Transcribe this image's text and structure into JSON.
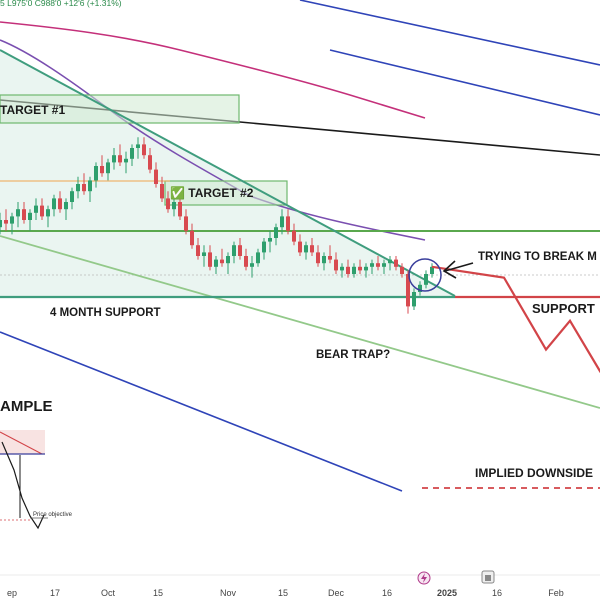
{
  "header": {
    "ohlc_text": "5  L975'0  C988'0  +12'6 (+1.31%)"
  },
  "annotations": {
    "target1": "TARGET #1",
    "target2": "✅ TARGET #2",
    "four_month_support": "4 MONTH SUPPORT",
    "trying_to_break": "TRYING TO BREAK M",
    "support": "SUPPORT",
    "bear_trap": "BEAR TRAP?",
    "implied_downside": "IMPLIED DOWNSIDE",
    "example": "AMPLE",
    "price_objective": "Price objective"
  },
  "x_axis": {
    "ticks": [
      "ep",
      "17",
      "Oct",
      "15",
      "Nov",
      "15",
      "Dec",
      "16",
      "2025",
      "16",
      "Feb"
    ]
  },
  "icons": [
    "lightning-icon",
    "calendar-icon"
  ],
  "colors": {
    "up_candle": "#2e9f6d",
    "down_candle": "#d84a50",
    "wedge_fill": "#e6f3ee",
    "wedge_line": "#3f9d7e",
    "ma_magenta": "#c4307a",
    "ma_purple": "#7a4fb0",
    "channel_blue": "#2f44b8",
    "support_red": "#d24448",
    "target_box": "#cfead1",
    "target_border": "#6fb86f"
  },
  "chart_data": {
    "type": "candlestick",
    "candles": [
      {
        "o": 48,
        "h": 52,
        "l": 46,
        "c": 50
      },
      {
        "o": 50,
        "h": 53,
        "l": 47,
        "c": 49
      },
      {
        "o": 49,
        "h": 52,
        "l": 46,
        "c": 51
      },
      {
        "o": 51,
        "h": 55,
        "l": 48,
        "c": 53
      },
      {
        "o": 53,
        "h": 55,
        "l": 49,
        "c": 50
      },
      {
        "o": 50,
        "h": 53,
        "l": 47,
        "c": 52
      },
      {
        "o": 52,
        "h": 56,
        "l": 50,
        "c": 54
      },
      {
        "o": 54,
        "h": 56,
        "l": 50,
        "c": 51
      },
      {
        "o": 51,
        "h": 54,
        "l": 48,
        "c": 53
      },
      {
        "o": 53,
        "h": 57,
        "l": 51,
        "c": 56
      },
      {
        "o": 56,
        "h": 58,
        "l": 52,
        "c": 53
      },
      {
        "o": 53,
        "h": 56,
        "l": 50,
        "c": 55
      },
      {
        "o": 55,
        "h": 59,
        "l": 53,
        "c": 58
      },
      {
        "o": 58,
        "h": 62,
        "l": 56,
        "c": 60
      },
      {
        "o": 60,
        "h": 63,
        "l": 57,
        "c": 58
      },
      {
        "o": 58,
        "h": 62,
        "l": 55,
        "c": 61
      },
      {
        "o": 61,
        "h": 66,
        "l": 59,
        "c": 65
      },
      {
        "o": 65,
        "h": 68,
        "l": 62,
        "c": 63
      },
      {
        "o": 63,
        "h": 67,
        "l": 61,
        "c": 66
      },
      {
        "o": 66,
        "h": 70,
        "l": 64,
        "c": 68
      },
      {
        "o": 68,
        "h": 71,
        "l": 65,
        "c": 66
      },
      {
        "o": 66,
        "h": 69,
        "l": 63,
        "c": 67
      },
      {
        "o": 67,
        "h": 71,
        "l": 65,
        "c": 70
      },
      {
        "o": 70,
        "h": 73,
        "l": 67,
        "c": 71
      },
      {
        "o": 71,
        "h": 73,
        "l": 67,
        "c": 68
      },
      {
        "o": 68,
        "h": 70,
        "l": 63,
        "c": 64
      },
      {
        "o": 64,
        "h": 66,
        "l": 59,
        "c": 60
      },
      {
        "o": 60,
        "h": 62,
        "l": 55,
        "c": 56
      },
      {
        "o": 56,
        "h": 58,
        "l": 52,
        "c": 53
      },
      {
        "o": 53,
        "h": 56,
        "l": 51,
        "c": 55
      },
      {
        "o": 55,
        "h": 57,
        "l": 50,
        "c": 51
      },
      {
        "o": 51,
        "h": 53,
        "l": 46,
        "c": 47
      },
      {
        "o": 47,
        "h": 49,
        "l": 42,
        "c": 43
      },
      {
        "o": 43,
        "h": 45,
        "l": 39,
        "c": 40
      },
      {
        "o": 40,
        "h": 43,
        "l": 37,
        "c": 41
      },
      {
        "o": 41,
        "h": 43,
        "l": 36,
        "c": 37
      },
      {
        "o": 37,
        "h": 40,
        "l": 35,
        "c": 39
      },
      {
        "o": 39,
        "h": 42,
        "l": 37,
        "c": 38
      },
      {
        "o": 38,
        "h": 41,
        "l": 35,
        "c": 40
      },
      {
        "o": 40,
        "h": 44,
        "l": 38,
        "c": 43
      },
      {
        "o": 43,
        "h": 45,
        "l": 39,
        "c": 40
      },
      {
        "o": 40,
        "h": 42,
        "l": 36,
        "c": 37
      },
      {
        "o": 37,
        "h": 40,
        "l": 34,
        "c": 38
      },
      {
        "o": 38,
        "h": 42,
        "l": 37,
        "c": 41
      },
      {
        "o": 41,
        "h": 45,
        "l": 39,
        "c": 44
      },
      {
        "o": 44,
        "h": 47,
        "l": 41,
        "c": 45
      },
      {
        "o": 45,
        "h": 49,
        "l": 43,
        "c": 48
      },
      {
        "o": 48,
        "h": 53,
        "l": 46,
        "c": 51
      },
      {
        "o": 51,
        "h": 53,
        "l": 46,
        "c": 47
      },
      {
        "o": 47,
        "h": 49,
        "l": 43,
        "c": 44
      },
      {
        "o": 44,
        "h": 46,
        "l": 40,
        "c": 41
      },
      {
        "o": 41,
        "h": 44,
        "l": 39,
        "c": 43
      },
      {
        "o": 43,
        "h": 45,
        "l": 40,
        "c": 41
      },
      {
        "o": 41,
        "h": 43,
        "l": 37,
        "c": 38
      },
      {
        "o": 38,
        "h": 41,
        "l": 36,
        "c": 40
      },
      {
        "o": 40,
        "h": 43,
        "l": 38,
        "c": 39
      },
      {
        "o": 39,
        "h": 41,
        "l": 35,
        "c": 36
      },
      {
        "o": 36,
        "h": 38,
        "l": 34,
        "c": 37
      },
      {
        "o": 37,
        "h": 39,
        "l": 34,
        "c": 35
      },
      {
        "o": 35,
        "h": 38,
        "l": 34,
        "c": 37
      },
      {
        "o": 37,
        "h": 39,
        "l": 35,
        "c": 36
      },
      {
        "o": 36,
        "h": 38,
        "l": 34,
        "c": 37
      },
      {
        "o": 37,
        "h": 39,
        "l": 35,
        "c": 38
      },
      {
        "o": 38,
        "h": 40,
        "l": 36,
        "c": 37
      },
      {
        "o": 37,
        "h": 39,
        "l": 35,
        "c": 38
      },
      {
        "o": 38,
        "h": 40,
        "l": 36,
        "c": 39
      },
      {
        "o": 39,
        "h": 40,
        "l": 36,
        "c": 37
      },
      {
        "o": 37,
        "h": 38,
        "l": 34,
        "c": 35
      },
      {
        "o": 35,
        "h": 36,
        "l": 24,
        "c": 26
      },
      {
        "o": 26,
        "h": 31,
        "l": 25,
        "c": 30
      },
      {
        "o": 30,
        "h": 33,
        "l": 29,
        "c": 32
      },
      {
        "o": 32,
        "h": 36,
        "l": 31,
        "c": 35
      },
      {
        "o": 35,
        "h": 38,
        "l": 34,
        "c": 37
      }
    ],
    "projection": [
      {
        "i": 84,
        "v": 34
      },
      {
        "i": 91,
        "v": 14
      },
      {
        "i": 95,
        "v": 22
      },
      {
        "i": 100,
        "v": 8
      },
      {
        "i": 106,
        "v": 16
      }
    ],
    "ylim": [
      0,
      100
    ]
  }
}
